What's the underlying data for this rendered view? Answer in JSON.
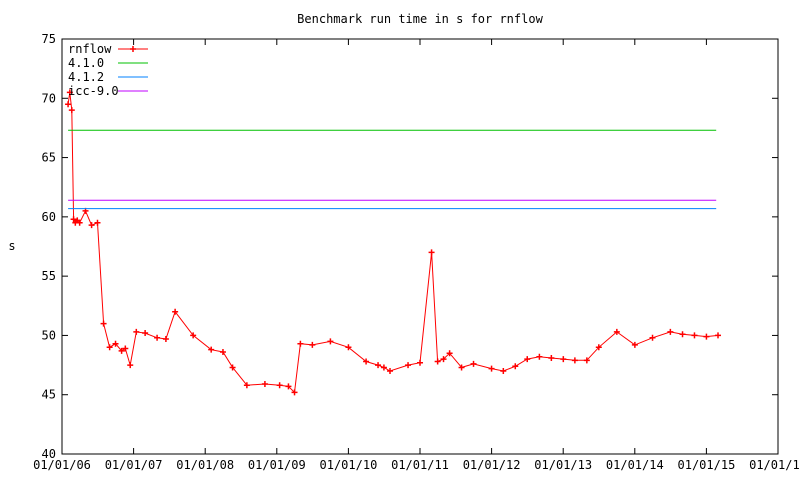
{
  "chart_data": {
    "type": "line",
    "title": "Benchmark run time in s for rnflow",
    "xlabel": "",
    "ylabel": "s",
    "x_range": [
      "2006-01-01",
      "2016-01-01"
    ],
    "x_ticks": [
      "01/01/06",
      "01/01/07",
      "01/01/08",
      "01/01/09",
      "01/01/10",
      "01/01/11",
      "01/01/12",
      "01/01/13",
      "01/01/14",
      "01/01/15",
      "01/01/16"
    ],
    "ylim": [
      40,
      75
    ],
    "y_ticks": [
      40,
      45,
      50,
      55,
      60,
      65,
      70,
      75
    ],
    "grid": false,
    "legend_position": "top-left",
    "series": [
      {
        "name": "rnflow",
        "color": "#ff0000",
        "style": "linespoints",
        "x": [
          "2006-02-01",
          "2006-02-10",
          "2006-02-20",
          "2006-03-01",
          "2006-03-10",
          "2006-03-20",
          "2006-04-01",
          "2006-05-01",
          "2006-06-01",
          "2006-07-01",
          "2006-08-01",
          "2006-09-01",
          "2006-10-01",
          "2006-11-01",
          "2006-11-20",
          "2006-12-15",
          "2007-01-15",
          "2007-03-01",
          "2007-05-01",
          "2007-06-15",
          "2007-08-01",
          "2007-11-01",
          "2008-02-01",
          "2008-04-01",
          "2008-05-20",
          "2008-08-01",
          "2008-11-01",
          "2009-01-15",
          "2009-03-01",
          "2009-04-01",
          "2009-05-01",
          "2009-07-01",
          "2009-10-01",
          "2010-01-01",
          "2010-04-01",
          "2010-06-01",
          "2010-07-01",
          "2010-08-01",
          "2010-11-01",
          "2011-01-01",
          "2011-03-01",
          "2011-04-01",
          "2011-05-01",
          "2011-06-01",
          "2011-08-01",
          "2011-10-01",
          "2012-01-01",
          "2012-03-01",
          "2012-05-01",
          "2012-07-01",
          "2012-09-01",
          "2012-11-01",
          "2013-01-01",
          "2013-03-01",
          "2013-05-01",
          "2013-07-01",
          "2013-10-01",
          "2014-01-01",
          "2014-04-01",
          "2014-07-01",
          "2014-09-01",
          "2014-11-01",
          "2015-01-01",
          "2015-03-01"
        ],
        "values": [
          69.5,
          70.5,
          69.0,
          59.8,
          59.5,
          59.7,
          59.5,
          60.5,
          59.3,
          59.5,
          51.0,
          49.0,
          49.3,
          48.7,
          48.9,
          47.5,
          50.3,
          50.2,
          49.8,
          49.7,
          52.0,
          50.0,
          48.8,
          48.6,
          47.3,
          45.8,
          45.9,
          45.8,
          45.7,
          45.2,
          49.3,
          49.2,
          49.5,
          49.0,
          47.8,
          47.5,
          47.3,
          47.0,
          47.5,
          47.7,
          57.0,
          47.8,
          48.0,
          48.5,
          47.3,
          47.6,
          47.2,
          47.0,
          47.4,
          48.0,
          48.2,
          48.1,
          48.0,
          47.9,
          47.9,
          49.0,
          50.3,
          49.2,
          49.8,
          50.3,
          50.1,
          50.0,
          49.9,
          50.0
        ]
      },
      {
        "name": "4.1.0",
        "color": "#00c000",
        "style": "lines",
        "x": [
          "2006-02-01",
          "2015-02-20"
        ],
        "values": [
          67.3,
          67.3
        ]
      },
      {
        "name": "4.1.2",
        "color": "#0080ff",
        "style": "lines",
        "x": [
          "2006-02-01",
          "2015-02-20"
        ],
        "values": [
          60.7,
          60.7
        ]
      },
      {
        "name": "icc-9.0",
        "color": "#c000ff",
        "style": "lines",
        "x": [
          "2006-02-01",
          "2015-02-20"
        ],
        "values": [
          61.4,
          61.4
        ]
      }
    ]
  }
}
